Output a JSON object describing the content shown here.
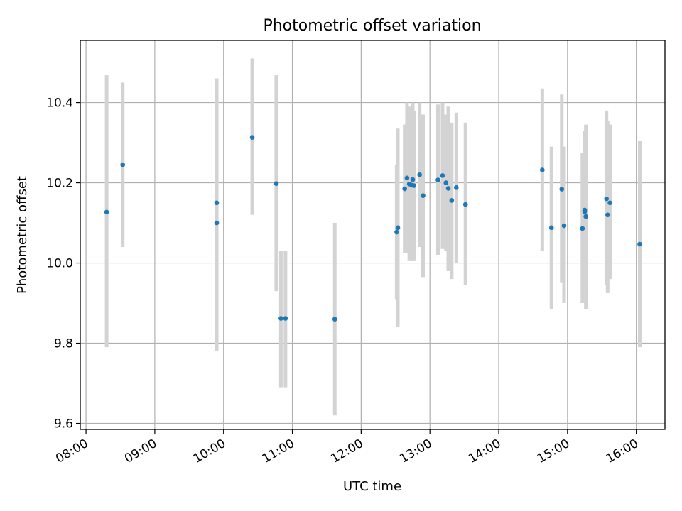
{
  "chart_data": {
    "type": "scatter",
    "title": "Photometric offset variation",
    "xlabel": "UTC time",
    "ylabel": "Photometric offset",
    "x_tick_labels": [
      "08:00",
      "09:00",
      "10:00",
      "11:00",
      "12:00",
      "13:00",
      "14:00",
      "15:00",
      "16:00"
    ],
    "y_tick_labels": [
      "9.6",
      "9.8",
      "10.0",
      "10.2",
      "10.4"
    ],
    "xlim": [
      "07:55",
      "16:25"
    ],
    "ylim": [
      9.585,
      10.555
    ],
    "grid": true,
    "colors": {
      "point": "#1f77b4",
      "errorbar": "#d3d3d3",
      "grid": "#b0b0b0"
    },
    "points": [
      {
        "t": "08:18",
        "y": 10.127,
        "lo": 9.79,
        "hi": 10.468
      },
      {
        "t": "08:32",
        "y": 10.245,
        "lo": 10.04,
        "hi": 10.45
      },
      {
        "t": "09:54",
        "y": 10.15,
        "lo": 9.84,
        "hi": 10.46
      },
      {
        "t": "09:54",
        "y": 10.1,
        "lo": 9.78,
        "hi": 10.42
      },
      {
        "t": "10:25",
        "y": 10.313,
        "lo": 10.12,
        "hi": 10.51
      },
      {
        "t": "10:46",
        "y": 10.198,
        "lo": 9.93,
        "hi": 10.47
      },
      {
        "t": "10:50",
        "y": 9.862,
        "lo": 9.69,
        "hi": 10.03
      },
      {
        "t": "10:54",
        "y": 9.862,
        "lo": 9.69,
        "hi": 10.03
      },
      {
        "t": "11:37",
        "y": 9.86,
        "lo": 9.62,
        "hi": 10.1
      },
      {
        "t": "12:31",
        "y": 10.077,
        "lo": 9.91,
        "hi": 10.245
      },
      {
        "t": "12:32",
        "y": 10.088,
        "lo": 9.84,
        "hi": 10.335
      },
      {
        "t": "12:38",
        "y": 10.185,
        "lo": 10.025,
        "hi": 10.345
      },
      {
        "t": "12:40",
        "y": 10.212,
        "lo": 10.025,
        "hi": 10.4
      },
      {
        "t": "12:42",
        "y": 10.197,
        "lo": 10.005,
        "hi": 10.39
      },
      {
        "t": "12:44",
        "y": 10.194,
        "lo": 10.005,
        "hi": 10.385
      },
      {
        "t": "12:45",
        "y": 10.208,
        "lo": 10.005,
        "hi": 10.4
      },
      {
        "t": "12:46",
        "y": 10.193,
        "lo": 10.005,
        "hi": 10.38
      },
      {
        "t": "12:51",
        "y": 10.22,
        "lo": 10.04,
        "hi": 10.4
      },
      {
        "t": "12:54",
        "y": 10.168,
        "lo": 9.965,
        "hi": 10.37
      },
      {
        "t": "13:07",
        "y": 10.207,
        "lo": 10.02,
        "hi": 10.395
      },
      {
        "t": "13:11",
        "y": 10.218,
        "lo": 10.035,
        "hi": 10.4
      },
      {
        "t": "13:14",
        "y": 10.2,
        "lo": 10.03,
        "hi": 10.37
      },
      {
        "t": "13:16",
        "y": 10.186,
        "lo": 9.98,
        "hi": 10.39
      },
      {
        "t": "13:19",
        "y": 10.156,
        "lo": 9.96,
        "hi": 10.35
      },
      {
        "t": "13:23",
        "y": 10.188,
        "lo": 10.0,
        "hi": 10.375
      },
      {
        "t": "13:31",
        "y": 10.146,
        "lo": 9.945,
        "hi": 10.35
      },
      {
        "t": "14:38",
        "y": 10.232,
        "lo": 10.03,
        "hi": 10.435
      },
      {
        "t": "14:46",
        "y": 10.088,
        "lo": 9.885,
        "hi": 10.29
      },
      {
        "t": "14:55",
        "y": 10.184,
        "lo": 9.95,
        "hi": 10.42
      },
      {
        "t": "14:57",
        "y": 10.093,
        "lo": 9.9,
        "hi": 10.29
      },
      {
        "t": "15:13",
        "y": 10.086,
        "lo": 9.9,
        "hi": 10.275
      },
      {
        "t": "15:15",
        "y": 10.128,
        "lo": 9.94,
        "hi": 10.325
      },
      {
        "t": "15:15",
        "y": 10.132,
        "lo": 9.93,
        "hi": 10.33
      },
      {
        "t": "15:16",
        "y": 10.116,
        "lo": 9.885,
        "hi": 10.345
      },
      {
        "t": "15:34",
        "y": 10.16,
        "lo": 9.945,
        "hi": 10.38
      },
      {
        "t": "15:35",
        "y": 10.12,
        "lo": 9.925,
        "hi": 10.355
      },
      {
        "t": "15:37",
        "y": 10.15,
        "lo": 9.96,
        "hi": 10.345
      },
      {
        "t": "16:03",
        "y": 10.047,
        "lo": 9.79,
        "hi": 10.305
      }
    ]
  }
}
